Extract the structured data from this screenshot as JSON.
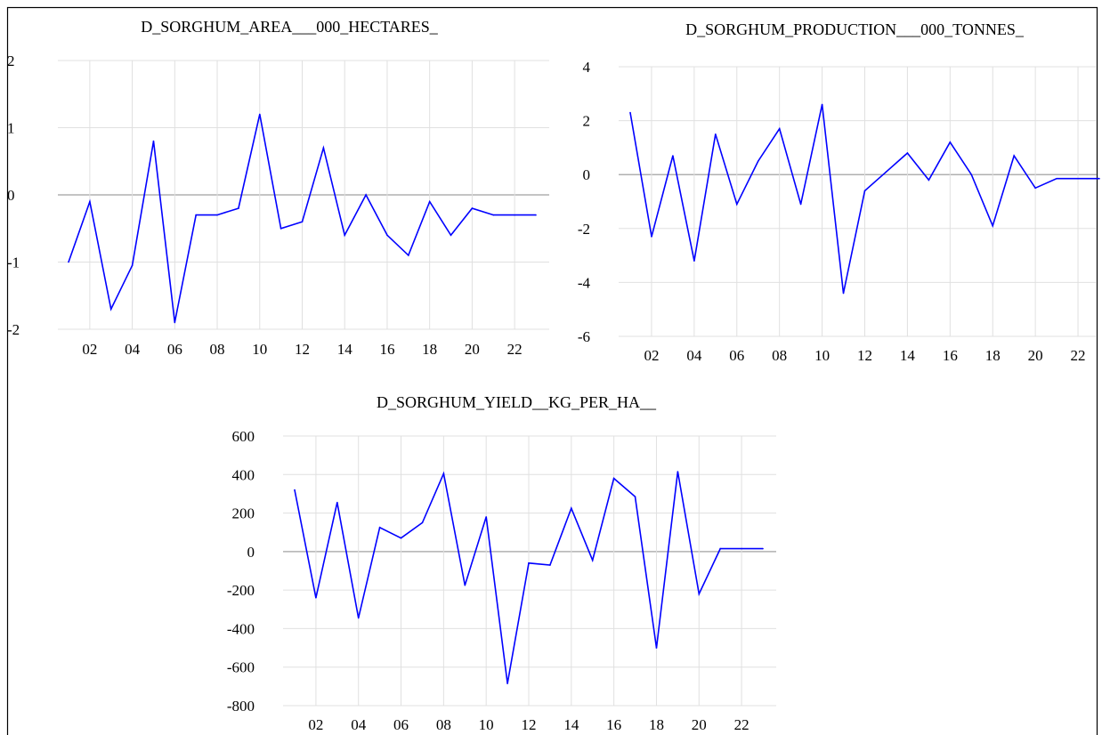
{
  "colors": {
    "line": "#0000ff",
    "grid": "#e0e0e0",
    "zero_line": "#b0b0b0",
    "border": "#000000"
  },
  "chart_data": [
    {
      "type": "line",
      "title": "D_SORGHUM_AREA___000_HECTARES_",
      "x_ticks": [
        "02",
        "04",
        "06",
        "08",
        "10",
        "12",
        "14",
        "16",
        "18",
        "20",
        "22"
      ],
      "y_ticks": [
        "2",
        "1",
        "0",
        "-1",
        "-2"
      ],
      "ylim": [
        -2,
        2
      ],
      "x": [
        2001,
        2002,
        2003,
        2004,
        2005,
        2006,
        2007,
        2008,
        2009,
        2010,
        2011,
        2012,
        2013,
        2014,
        2015,
        2016,
        2017,
        2018,
        2019,
        2020,
        2021,
        2022,
        2023
      ],
      "values": [
        -1.0,
        -0.1,
        -1.7,
        -1.05,
        0.8,
        -1.9,
        -0.3,
        -0.3,
        -0.2,
        1.2,
        -0.5,
        -0.4,
        0.7,
        -0.6,
        0.0,
        -0.6,
        -0.9,
        -0.1,
        -0.6,
        -0.2,
        -0.3,
        -0.3,
        -0.3
      ],
      "grid": true
    },
    {
      "type": "line",
      "title": "D_SORGHUM_PRODUCTION___000_TONNES_",
      "x_ticks": [
        "02",
        "04",
        "06",
        "08",
        "10",
        "12",
        "14",
        "16",
        "18",
        "20",
        "22"
      ],
      "y_ticks": [
        "4",
        "2",
        "0",
        "-2",
        "-4",
        "-6"
      ],
      "ylim": [
        -6,
        4
      ],
      "x": [
        2001,
        2002,
        2003,
        2004,
        2005,
        2006,
        2007,
        2008,
        2009,
        2010,
        2011,
        2012,
        2013,
        2014,
        2015,
        2016,
        2017,
        2018,
        2019,
        2020,
        2021,
        2022,
        2023
      ],
      "values": [
        2.3,
        -2.3,
        0.7,
        -3.2,
        1.5,
        -1.1,
        0.5,
        1.7,
        -1.1,
        2.6,
        -4.4,
        -0.6,
        0.1,
        0.8,
        -0.2,
        1.2,
        0.0,
        -1.9,
        0.7,
        -0.5,
        -0.15,
        -0.15,
        -0.15
      ],
      "grid": true
    },
    {
      "type": "line",
      "title": "D_SORGHUM_YIELD__KG_PER_HA__",
      "x_ticks": [
        "02",
        "04",
        "06",
        "08",
        "10",
        "12",
        "14",
        "16",
        "18",
        "20",
        "22"
      ],
      "y_ticks": [
        "600",
        "400",
        "200",
        "0",
        "-200",
        "-400",
        "-600",
        "-800"
      ],
      "ylim": [
        -800,
        600
      ],
      "x": [
        2001,
        2002,
        2003,
        2004,
        2005,
        2006,
        2007,
        2008,
        2009,
        2010,
        2011,
        2012,
        2013,
        2014,
        2015,
        2016,
        2017,
        2018,
        2019,
        2020,
        2021,
        2022,
        2023
      ],
      "values": [
        320,
        -240,
        255,
        -345,
        125,
        70,
        150,
        405,
        -175,
        180,
        -685,
        -60,
        -70,
        225,
        -45,
        380,
        285,
        -500,
        415,
        -220,
        15,
        15,
        15
      ],
      "grid": true
    }
  ]
}
